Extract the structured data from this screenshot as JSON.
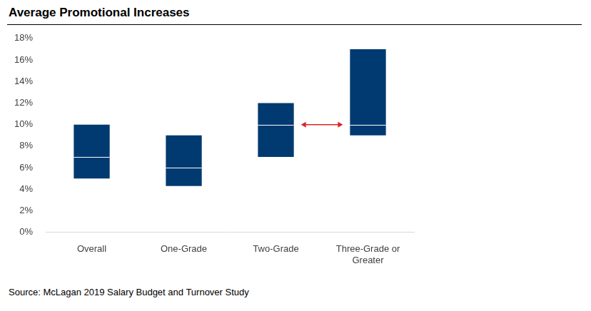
{
  "chart_data": {
    "type": "bar",
    "title": "Average Promotional Increases",
    "source": "Source: McLagan 2019 Salary Budget and Turnover Study",
    "categories": [
      "Overall",
      "One-Grade",
      "Two-Grade",
      "Three-Grade or Greater"
    ],
    "values": [
      [
        5,
        10
      ],
      [
        4.3,
        9
      ],
      [
        7,
        12
      ],
      [
        9,
        17
      ]
    ],
    "medians": [
      7,
      6,
      10,
      10
    ],
    "color": "#003a70",
    "ylim": [
      0,
      18
    ],
    "yticks": [
      {
        "value": 0,
        "label": "0%"
      },
      {
        "value": 2,
        "label": "2%"
      },
      {
        "value": 4,
        "label": "4%"
      },
      {
        "value": 6,
        "label": "6%"
      },
      {
        "value": 8,
        "label": "8%"
      },
      {
        "value": 10,
        "label": "10%"
      },
      {
        "value": 12,
        "label": "12%"
      },
      {
        "value": 14,
        "label": "14%"
      },
      {
        "value": 16,
        "label": "16%"
      },
      {
        "value": 18,
        "label": "18%"
      }
    ],
    "grid": false
  }
}
